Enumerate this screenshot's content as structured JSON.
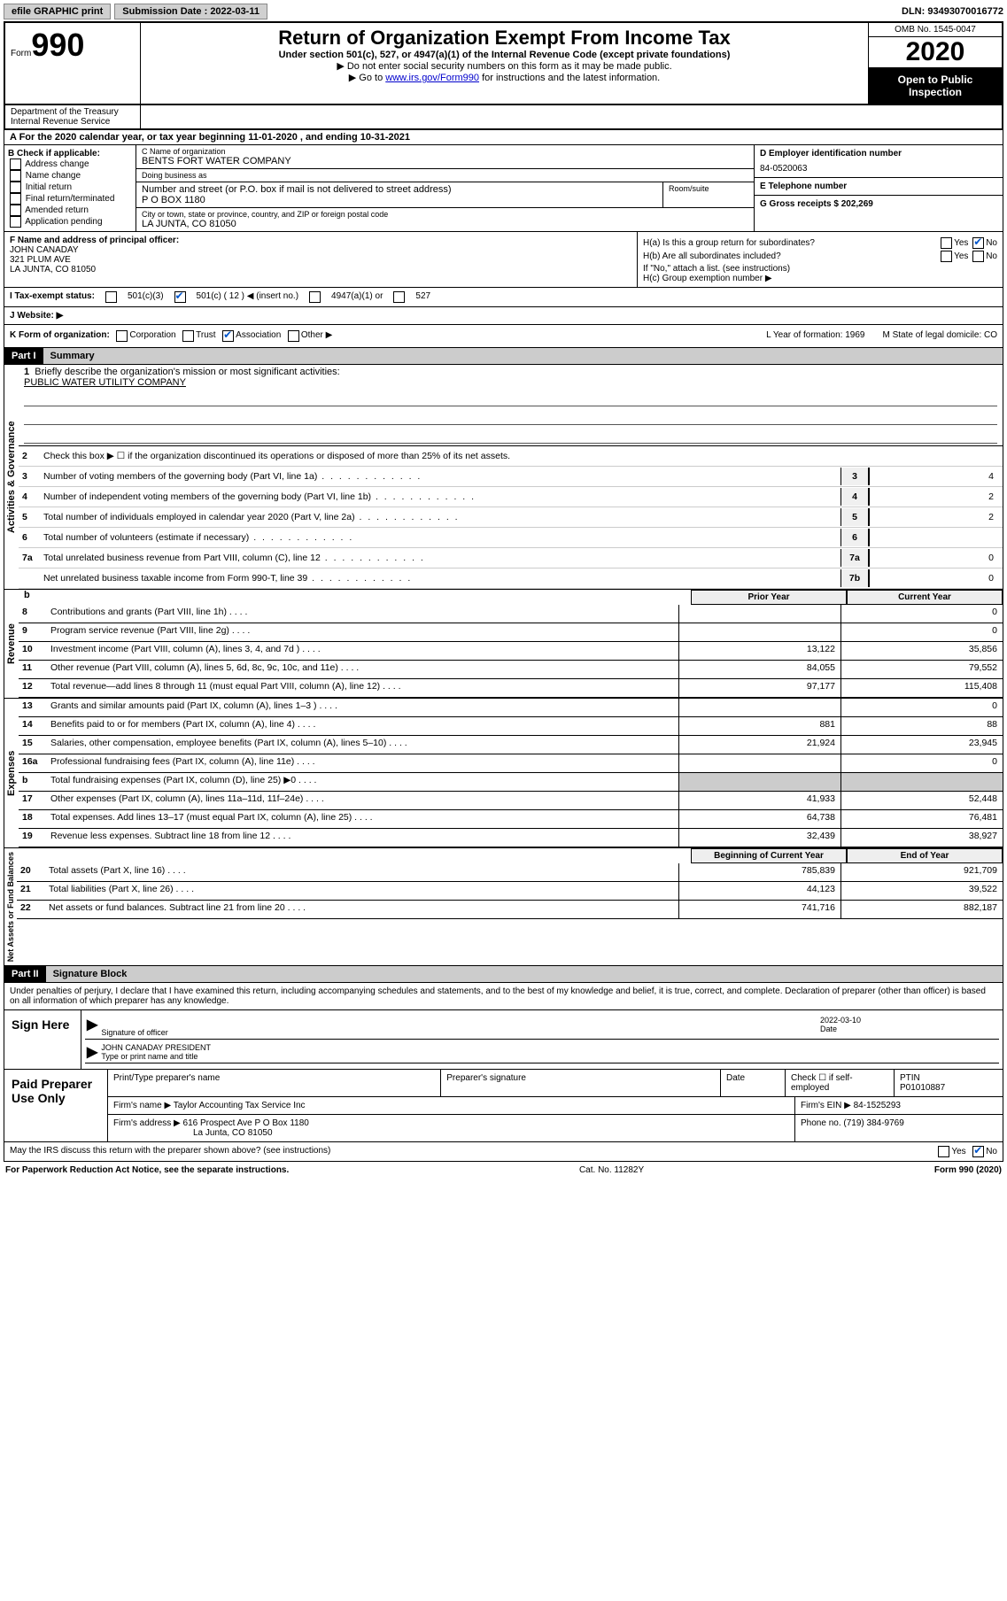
{
  "topbar": {
    "efile": "efile GRAPHIC print",
    "submission_label": "Submission Date : 2022-03-11",
    "dln": "DLN: 93493070016772"
  },
  "header": {
    "form_word": "Form",
    "form_num": "990",
    "title": "Return of Organization Exempt From Income Tax",
    "subtitle": "Under section 501(c), 527, or 4947(a)(1) of the Internal Revenue Code (except private foundations)",
    "note1": "▶ Do not enter social security numbers on this form as it may be made public.",
    "note2_pre": "▶ Go to ",
    "note2_link": "www.irs.gov/Form990",
    "note2_post": " for instructions and the latest information.",
    "omb": "OMB No. 1545-0047",
    "year": "2020",
    "open": "Open to Public Inspection",
    "dept": "Department of the Treasury\nInternal Revenue Service"
  },
  "period": "A For the 2020 calendar year, or tax year beginning 11-01-2020      , and ending 10-31-2021",
  "boxB": {
    "hdr": "B Check if applicable:",
    "opts": [
      "Address change",
      "Name change",
      "Initial return",
      "Final return/terminated",
      "Amended return",
      "Application pending"
    ]
  },
  "boxC": {
    "name_lbl": "C Name of organization",
    "name": "BENTS FORT WATER COMPANY",
    "dba_lbl": "Doing business as",
    "addr_lbl": "Number and street (or P.O. box if mail is not delivered to street address)",
    "addr": "P O BOX 1180",
    "room_lbl": "Room/suite",
    "city_lbl": "City or town, state or province, country, and ZIP or foreign postal code",
    "city": "LA JUNTA, CO   81050"
  },
  "boxD": {
    "lbl": "D Employer identification number",
    "val": "84-0520063"
  },
  "boxE": {
    "lbl": "E Telephone number",
    "val": ""
  },
  "boxG": {
    "lbl": "G Gross receipts $ 202,269"
  },
  "boxF": {
    "lbl": "F  Name and address of principal officer:",
    "name": "JOHN CANADAY",
    "addr1": "321 PLUM AVE",
    "addr2": "LA JUNTA, CO   81050"
  },
  "boxH": {
    "a": "H(a)  Is this a group return for subordinates?",
    "b": "H(b)  Are all subordinates included?",
    "note": "If \"No,\" attach a list. (see instructions)",
    "c": "H(c)  Group exemption number ▶"
  },
  "boxI": {
    "lbl": "I   Tax-exempt status:",
    "o1": "501(c)(3)",
    "o2": "501(c) ( 12 ) ◀ (insert no.)",
    "o3": "4947(a)(1) or",
    "o4": "527"
  },
  "boxJ": "J    Website: ▶",
  "boxK": {
    "lbl": "K Form of organization:",
    "o1": "Corporation",
    "o2": "Trust",
    "o3": "Association",
    "o4": "Other ▶",
    "L": "L Year of formation: 1969",
    "M": "M State of legal domicile: CO"
  },
  "part1": {
    "hdr": "Part I",
    "title": "Summary"
  },
  "summary": {
    "l1a": "Briefly describe the organization's mission or most significant activities:",
    "l1b": "PUBLIC WATER UTILITY COMPANY",
    "l2": "Check this box ▶ ☐  if the organization discontinued its operations or disposed of more than 25% of its net assets.",
    "rows_ag": [
      {
        "n": "3",
        "d": "Number of voting members of the governing body (Part VI, line 1a)",
        "box": "3",
        "v": "4"
      },
      {
        "n": "4",
        "d": "Number of independent voting members of the governing body (Part VI, line 1b)",
        "box": "4",
        "v": "2"
      },
      {
        "n": "5",
        "d": "Total number of individuals employed in calendar year 2020 (Part V, line 2a)",
        "box": "5",
        "v": "2"
      },
      {
        "n": "6",
        "d": "Total number of volunteers (estimate if necessary)",
        "box": "6",
        "v": ""
      },
      {
        "n": "7a",
        "d": "Total unrelated business revenue from Part VIII, column (C), line 12",
        "box": "7a",
        "v": "0"
      },
      {
        "n": "",
        "d": "Net unrelated business taxable income from Form 990-T, line 39",
        "box": "7b",
        "v": "0"
      }
    ],
    "col_hdr_b": "b",
    "col_hdr_prior": "Prior Year",
    "col_hdr_current": "Current Year",
    "rev": [
      {
        "n": "8",
        "d": "Contributions and grants (Part VIII, line 1h)",
        "p": "",
        "c": "0"
      },
      {
        "n": "9",
        "d": "Program service revenue (Part VIII, line 2g)",
        "p": "",
        "c": "0"
      },
      {
        "n": "10",
        "d": "Investment income (Part VIII, column (A), lines 3, 4, and 7d )",
        "p": "13,122",
        "c": "35,856"
      },
      {
        "n": "11",
        "d": "Other revenue (Part VIII, column (A), lines 5, 6d, 8c, 9c, 10c, and 11e)",
        "p": "84,055",
        "c": "79,552"
      },
      {
        "n": "12",
        "d": "Total revenue—add lines 8 through 11 (must equal Part VIII, column (A), line 12)",
        "p": "97,177",
        "c": "115,408"
      }
    ],
    "exp": [
      {
        "n": "13",
        "d": "Grants and similar amounts paid (Part IX, column (A), lines 1–3 )",
        "p": "",
        "c": "0"
      },
      {
        "n": "14",
        "d": "Benefits paid to or for members (Part IX, column (A), line 4)",
        "p": "881",
        "c": "88"
      },
      {
        "n": "15",
        "d": "Salaries, other compensation, employee benefits (Part IX, column (A), lines 5–10)",
        "p": "21,924",
        "c": "23,945"
      },
      {
        "n": "16a",
        "d": "Professional fundraising fees (Part IX, column (A), line 11e)",
        "p": "",
        "c": "0"
      },
      {
        "n": "b",
        "d": "Total fundraising expenses (Part IX, column (D), line 25) ▶0",
        "p": "—",
        "c": "—"
      },
      {
        "n": "17",
        "d": "Other expenses (Part IX, column (A), lines 11a–11d, 11f–24e)",
        "p": "41,933",
        "c": "52,448"
      },
      {
        "n": "18",
        "d": "Total expenses. Add lines 13–17 (must equal Part IX, column (A), line 25)",
        "p": "64,738",
        "c": "76,481"
      },
      {
        "n": "19",
        "d": "Revenue less expenses. Subtract line 18 from line 12",
        "p": "32,439",
        "c": "38,927"
      }
    ],
    "col_hdr_begin": "Beginning of Current Year",
    "col_hdr_end": "End of Year",
    "net": [
      {
        "n": "20",
        "d": "Total assets (Part X, line 16)",
        "p": "785,839",
        "c": "921,709"
      },
      {
        "n": "21",
        "d": "Total liabilities (Part X, line 26)",
        "p": "44,123",
        "c": "39,522"
      },
      {
        "n": "22",
        "d": "Net assets or fund balances. Subtract line 21 from line 20",
        "p": "741,716",
        "c": "882,187"
      }
    ]
  },
  "tabs": {
    "ag": "Activities & Governance",
    "rev": "Revenue",
    "exp": "Expenses",
    "net": "Net Assets or Fund Balances"
  },
  "part2": {
    "hdr": "Part II",
    "title": "Signature Block"
  },
  "perjury": "Under penalties of perjury, I declare that I have examined this return, including accompanying schedules and statements, and to the best of my knowledge and belief, it is true, correct, and complete. Declaration of preparer (other than officer) is based on all information of which preparer has any knowledge.",
  "sign": {
    "here": "Sign Here",
    "sig_lbl": "Signature of officer",
    "date_lbl": "Date",
    "date": "2022-03-10",
    "name": "JOHN CANADAY  PRESIDENT",
    "name_lbl": "Type or print name and title"
  },
  "prep": {
    "hdr": "Paid Preparer Use Only",
    "c1": "Print/Type preparer's name",
    "c2": "Preparer's signature",
    "c3": "Date",
    "c4a": "Check ☐ if self-employed",
    "c5a": "PTIN",
    "c5b": "P01010887",
    "firm_lbl": "Firm's name      ▶",
    "firm": "Taylor Accounting Tax Service Inc",
    "ein_lbl": "Firm's EIN ▶",
    "ein": "84-1525293",
    "addr_lbl": "Firm's address ▶",
    "addr1": "616 Prospect Ave P O Box 1180",
    "addr2": "La Junta, CO   81050",
    "phone_lbl": "Phone no.",
    "phone": "(719) 384-9769"
  },
  "discuss": "May the IRS discuss this return with the preparer shown above? (see instructions)",
  "footer": {
    "l": "For Paperwork Reduction Act Notice, see the separate instructions.",
    "m": "Cat. No. 11282Y",
    "r": "Form 990 (2020)"
  },
  "yn": {
    "yes": "Yes",
    "no": "No"
  }
}
